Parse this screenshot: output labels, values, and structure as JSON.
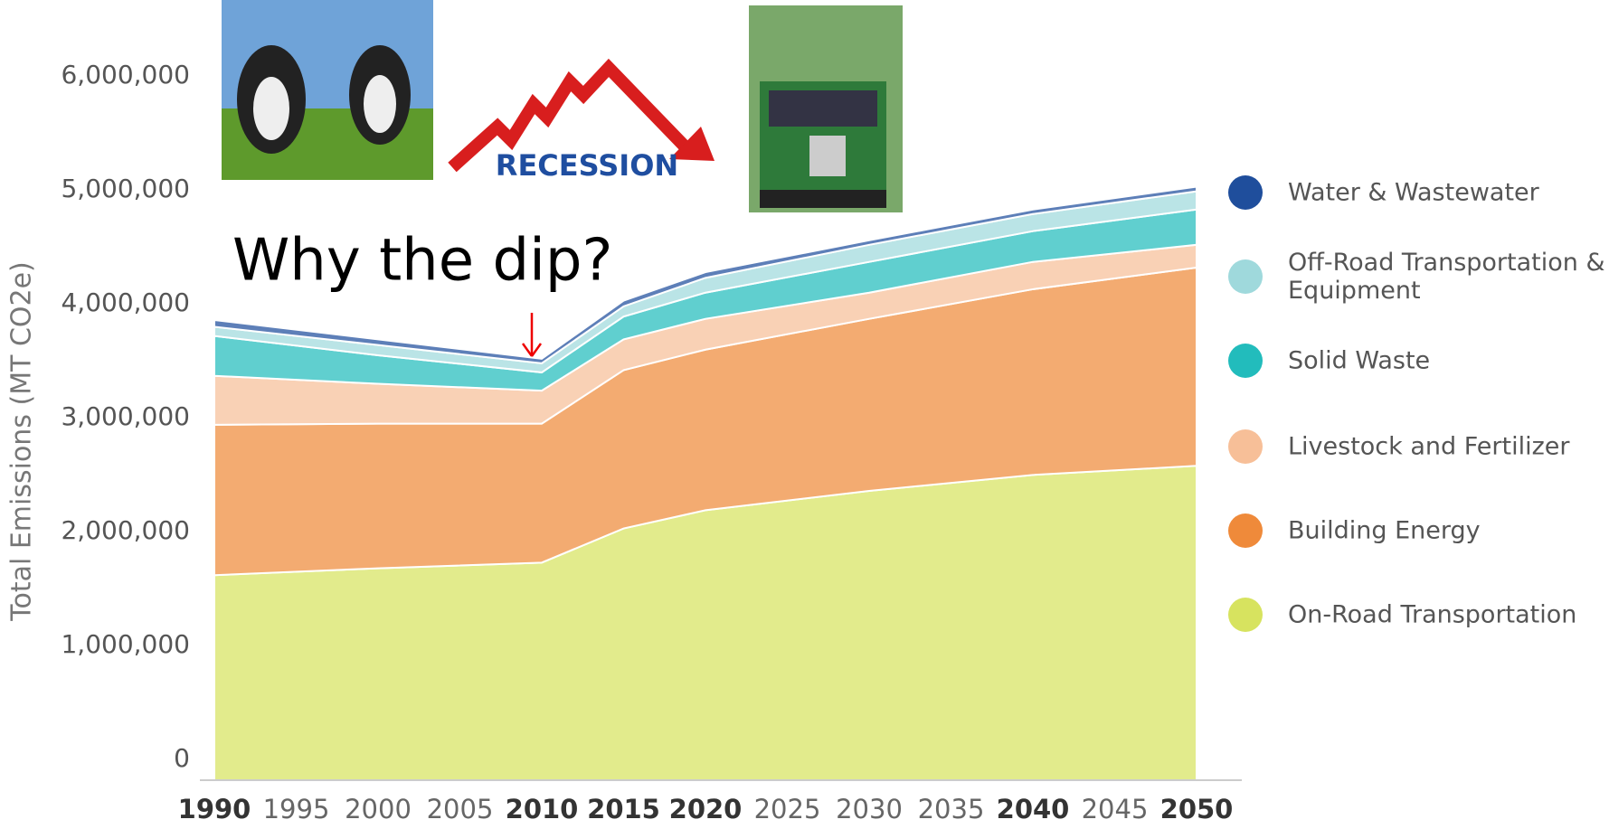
{
  "chart_data": {
    "type": "stacked-area",
    "y_label": "Total Emissions (MT CO2e)",
    "x": [
      1990,
      2000,
      2010,
      2015,
      2020,
      2030,
      2040,
      2050
    ],
    "xlim": [
      1990,
      2050
    ],
    "xticks": [
      1990,
      1995,
      2000,
      2005,
      2010,
      2015,
      2020,
      2025,
      2030,
      2035,
      2040,
      2045,
      2050
    ],
    "xticks_bold": [
      true,
      false,
      false,
      false,
      true,
      true,
      true,
      false,
      false,
      false,
      true,
      false,
      true
    ],
    "ylim": [
      0,
      6000000
    ],
    "yticks": [
      0,
      {
        "value": 1000000,
        "label": "1,000,000"
      },
      {
        "value": 2000000,
        "label": "2,000,000"
      },
      {
        "value": 3000000,
        "label": "3,000,000"
      },
      {
        "value": 4000000,
        "label": "4,000,000"
      },
      {
        "value": 5000000,
        "label": "5,000,000"
      },
      {
        "value": 6000000,
        "label": "6,000,000"
      }
    ],
    "series": [
      {
        "name": "On-Road Transportation",
        "color": "#d7e35f",
        "values": [
          1800000,
          1860000,
          1910000,
          2210000,
          2370000,
          2540000,
          2680000,
          2760000
        ]
      },
      {
        "name": "Building Energy",
        "color": "#ef8a3a",
        "values": [
          1320000,
          1270000,
          1220000,
          1390000,
          1410000,
          1510000,
          1630000,
          1740000
        ]
      },
      {
        "name": "Livestock and Fertilizer",
        "color": "#f7bf98",
        "values": [
          430000,
          350000,
          290000,
          270000,
          270000,
          230000,
          240000,
          200000
        ]
      },
      {
        "name": "Solid Waste",
        "color": "#22bcbc",
        "values": [
          350000,
          250000,
          160000,
          200000,
          230000,
          270000,
          270000,
          310000
        ]
      },
      {
        "name": "Off-Road Transportation & Equipment",
        "color": "#9fd9dc",
        "values": [
          80000,
          90000,
          80000,
          90000,
          130000,
          150000,
          150000,
          160000
        ]
      },
      {
        "name": "Water & Wastewater",
        "color": "#1f4e9c",
        "values": [
          60000,
          50000,
          40000,
          50000,
          50000,
          40000,
          40000,
          40000
        ]
      }
    ],
    "annotations": [
      {
        "text": "Why the dip?"
      },
      {
        "text": "RECESSION"
      }
    ]
  }
}
